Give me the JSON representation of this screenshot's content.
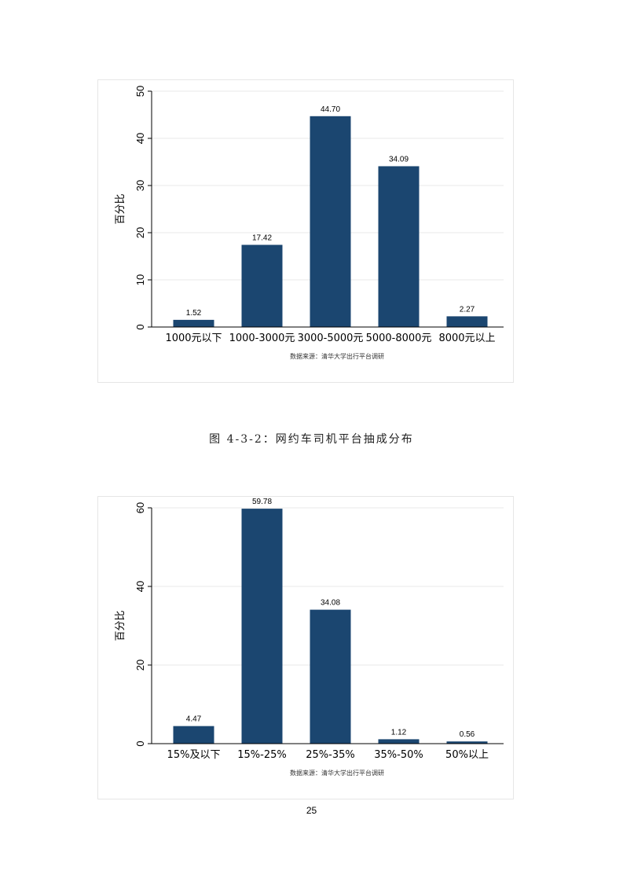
{
  "chart_data": [
    {
      "type": "bar",
      "categories": [
        "1000元以下",
        "1000-3000元",
        "3000-5000元",
        "5000-8000元",
        "8000元以上"
      ],
      "values": [
        1.52,
        17.42,
        44.7,
        34.09,
        2.27
      ],
      "value_labels": [
        "1.52",
        "17.42",
        "44.70",
        "34.09",
        "2.27"
      ],
      "ylabel": "百分比",
      "xlabel": "",
      "ylim": [
        0,
        50
      ],
      "yticks": [
        0,
        10,
        20,
        30,
        40,
        50
      ],
      "note": "数据来源：清华大学出行平台调研",
      "grid": true,
      "bar_color": "#1b4670"
    },
    {
      "type": "bar",
      "categories": [
        "15%及以下",
        "15%-25%",
        "25%-35%",
        "35%-50%",
        "50%以上"
      ],
      "values": [
        4.47,
        59.78,
        34.08,
        1.12,
        0.56
      ],
      "value_labels": [
        "4.47",
        "59.78",
        "34.08",
        "1.12",
        "0.56"
      ],
      "ylabel": "百分比",
      "xlabel": "",
      "ylim": [
        0,
        60
      ],
      "yticks": [
        0,
        20,
        40,
        60
      ],
      "note": "数据来源：清华大学出行平台调研",
      "grid": true,
      "bar_color": "#1b4670"
    }
  ],
  "caption": "图 4-3-2：网约车司机平台抽成分布",
  "page_number": "25"
}
